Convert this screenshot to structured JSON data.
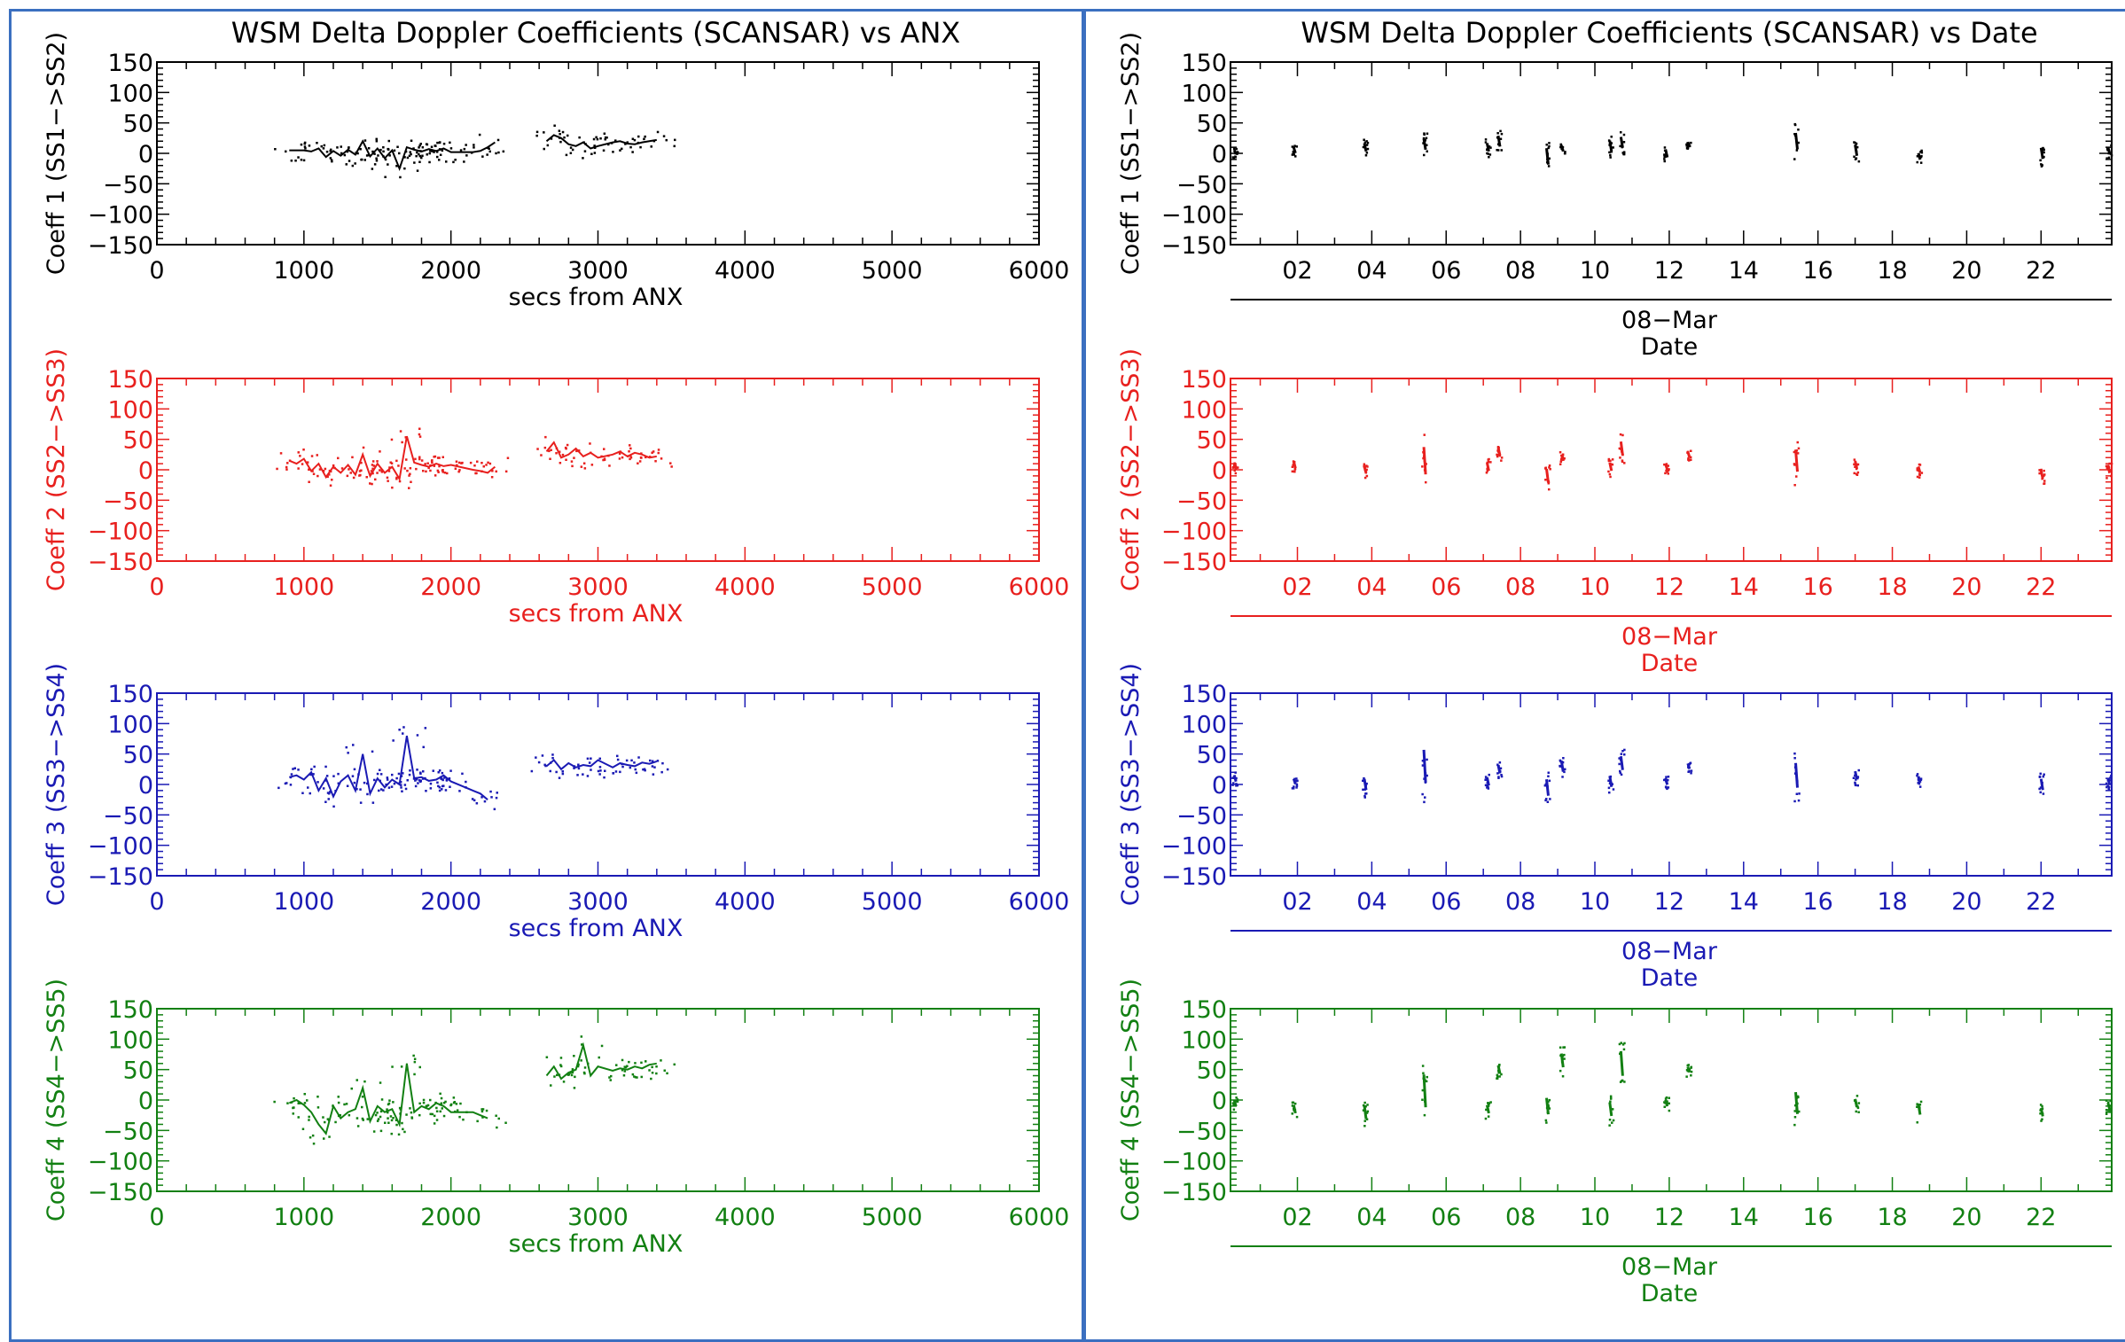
{
  "colors": {
    "black": "#000000",
    "red": "#e8201e",
    "blue": "#1a1ab4",
    "green": "#128012",
    "frame": "#3b6fc0"
  },
  "left": {
    "title": "WSM Delta Doppler Coefficients (SCANSAR) vs ANX",
    "xlabel": "secs from ANX",
    "xticks": [
      "0",
      "1000",
      "2000",
      "3000",
      "4000",
      "5000",
      "6000"
    ],
    "yticks": [
      "150",
      "100",
      "50",
      "0",
      "−50",
      "−100",
      "−150"
    ]
  },
  "right": {
    "title": "WSM Delta Doppler Coefficients (SCANSAR) vs Date",
    "xticks": [
      "02",
      "04",
      "06",
      "08",
      "10",
      "12",
      "14",
      "16",
      "18",
      "20",
      "22"
    ],
    "date_label": "08−Mar",
    "xlabel": "Date",
    "yticks": [
      "150",
      "100",
      "50",
      "0",
      "−50",
      "−100",
      "−150"
    ]
  },
  "chart_data": [
    {
      "type": "scatter",
      "title": "WSM Delta Doppler Coefficients (SCANSAR) vs ANX",
      "xlabel": "secs from ANX",
      "ylabel": "Coeff 1 (SS1−>SS2)",
      "color": "#000000",
      "xlim": [
        0,
        6000
      ],
      "ylim": [
        -150,
        150
      ],
      "series": [
        {
          "x": [
            900,
            1000,
            1050,
            1100,
            1150,
            1200,
            1250,
            1300,
            1350,
            1400,
            1450,
            1500,
            1550,
            1600,
            1650,
            1700,
            1750,
            1800,
            1850,
            1900,
            1950,
            2000,
            2150,
            2200,
            2250,
            2300,
            2650,
            2700,
            2750,
            2800,
            2850,
            2900,
            2950,
            3000,
            3100,
            3150,
            3200,
            3250,
            3300,
            3350,
            3400
          ],
          "y": [
            5,
            5,
            3,
            8,
            -6,
            4,
            -4,
            6,
            -2,
            20,
            -5,
            8,
            -8,
            5,
            -25,
            10,
            6,
            3,
            7,
            4,
            8,
            2,
            2,
            4,
            10,
            18,
            20,
            30,
            25,
            15,
            12,
            18,
            8,
            12,
            18,
            20,
            16,
            15,
            18,
            20,
            22
          ]
        }
      ]
    },
    {
      "type": "scatter",
      "title": "",
      "xlabel": "secs from ANX",
      "ylabel": "Coeff 2 (SS2−>SS3)",
      "color": "#e8201e",
      "xlim": [
        0,
        6000
      ],
      "ylim": [
        -150,
        150
      ],
      "series": [
        {
          "x": [
            900,
            950,
            1000,
            1050,
            1100,
            1150,
            1200,
            1250,
            1300,
            1350,
            1400,
            1450,
            1500,
            1550,
            1600,
            1650,
            1700,
            1750,
            1800,
            1850,
            1900,
            1950,
            2000,
            2150,
            2200,
            2250,
            2300,
            2650,
            2700,
            2750,
            2800,
            2850,
            2900,
            2950,
            3000,
            3100,
            3150,
            3200,
            3250,
            3300,
            3350,
            3400
          ],
          "y": [
            15,
            10,
            18,
            -2,
            10,
            -12,
            5,
            -5,
            8,
            -8,
            25,
            -10,
            10,
            -5,
            5,
            -15,
            55,
            12,
            8,
            5,
            10,
            6,
            8,
            0,
            -2,
            -5,
            5,
            30,
            45,
            20,
            25,
            35,
            22,
            28,
            20,
            25,
            30,
            22,
            28,
            25,
            20,
            22
          ]
        }
      ]
    },
    {
      "type": "scatter",
      "title": "",
      "xlabel": "secs from ANX",
      "ylabel": "Coeff 3 (SS3−>SS4)",
      "color": "#1a1ab4",
      "xlim": [
        0,
        6000
      ],
      "ylim": [
        -150,
        150
      ],
      "series": [
        {
          "x": [
            900,
            950,
            1000,
            1050,
            1100,
            1150,
            1200,
            1250,
            1300,
            1350,
            1400,
            1450,
            1500,
            1550,
            1600,
            1650,
            1700,
            1750,
            1800,
            1850,
            1900,
            1950,
            2000,
            2150,
            2200,
            2250,
            2650,
            2700,
            2750,
            2800,
            2850,
            2900,
            2950,
            3000,
            3100,
            3150,
            3200,
            3250,
            3300,
            3350,
            3400
          ],
          "y": [
            12,
            15,
            8,
            20,
            -10,
            10,
            -20,
            5,
            15,
            -10,
            50,
            -15,
            10,
            -5,
            8,
            0,
            80,
            10,
            12,
            6,
            8,
            15,
            5,
            -10,
            -15,
            -25,
            30,
            40,
            25,
            35,
            28,
            32,
            30,
            40,
            28,
            35,
            32,
            30,
            36,
            34,
            38
          ]
        }
      ]
    },
    {
      "type": "scatter",
      "title": "",
      "xlabel": "secs from ANX",
      "ylabel": "Coeff 4 (SS4−>SS5)",
      "color": "#128012",
      "xlim": [
        0,
        6000
      ],
      "ylim": [
        -150,
        150
      ],
      "series": [
        {
          "x": [
            900,
            950,
            1000,
            1050,
            1100,
            1150,
            1200,
            1250,
            1300,
            1350,
            1400,
            1450,
            1500,
            1550,
            1600,
            1650,
            1700,
            1750,
            1800,
            1850,
            1900,
            1950,
            2000,
            2150,
            2200,
            2250,
            2650,
            2700,
            2750,
            2800,
            2850,
            2900,
            2950,
            3000,
            3100,
            3150,
            3200,
            3250,
            3300,
            3350,
            3400
          ],
          "y": [
            -5,
            0,
            -8,
            -20,
            -40,
            -55,
            -10,
            -30,
            -20,
            -15,
            20,
            -35,
            -10,
            -20,
            -15,
            -40,
            60,
            -20,
            -10,
            -15,
            -5,
            -10,
            -20,
            -20,
            -25,
            -30,
            40,
            55,
            35,
            45,
            50,
            90,
            40,
            55,
            48,
            52,
            50,
            55,
            52,
            58,
            60
          ]
        }
      ]
    },
    {
      "type": "scatter",
      "title": "WSM Delta Doppler Coefficients (SCANSAR) vs Date",
      "xlabel": "Date",
      "ylabel": "Coeff 1 (SS1−>SS2)",
      "color": "#000000",
      "xlim": [
        0.2,
        23.9
      ],
      "ylim": [
        -150,
        150
      ],
      "series": [
        {
          "x": [
            0.3,
            1.9,
            3.8,
            5.4,
            7.1,
            7.4,
            8.7,
            9.1,
            10.4,
            10.7,
            11.9,
            12.5,
            15.4,
            17.0,
            18.7,
            22.0,
            23.8
          ],
          "y": [
            2,
            5,
            10,
            15,
            10,
            20,
            -5,
            8,
            12,
            18,
            0,
            15,
            20,
            5,
            -5,
            0,
            5
          ],
          "spread": [
            8,
            10,
            15,
            20,
            15,
            20,
            30,
            10,
            20,
            20,
            15,
            8,
            30,
            20,
            12,
            20,
            12
          ]
        }
      ]
    },
    {
      "type": "scatter",
      "title": "",
      "xlabel": "Date",
      "ylabel": "Coeff 2 (SS2−>SS3)",
      "color": "#e8201e",
      "xlim": [
        0.2,
        23.9
      ],
      "ylim": [
        -150,
        150
      ],
      "series": [
        {
          "x": [
            0.3,
            1.9,
            3.8,
            5.4,
            7.1,
            7.4,
            8.7,
            9.1,
            10.4,
            10.7,
            11.9,
            12.5,
            15.4,
            17.0,
            18.7,
            22.0,
            23.8
          ],
          "y": [
            5,
            8,
            0,
            15,
            5,
            30,
            -10,
            20,
            5,
            35,
            5,
            25,
            15,
            8,
            0,
            -8,
            0
          ],
          "spread": [
            10,
            12,
            12,
            50,
            15,
            15,
            25,
            12,
            15,
            25,
            10,
            10,
            40,
            15,
            12,
            15,
            12
          ]
        }
      ]
    },
    {
      "type": "scatter",
      "title": "",
      "xlabel": "Date",
      "ylabel": "Coeff 3 (SS3−>SS4)",
      "color": "#1a1ab4",
      "xlim": [
        0.2,
        23.9
      ],
      "ylim": [
        -150,
        150
      ],
      "series": [
        {
          "x": [
            0.3,
            1.9,
            3.8,
            5.4,
            7.1,
            7.4,
            8.7,
            9.1,
            10.4,
            10.7,
            11.9,
            12.5,
            15.4,
            17.0,
            18.7,
            22.0,
            23.8
          ],
          "y": [
            10,
            5,
            0,
            30,
            5,
            25,
            -5,
            30,
            5,
            35,
            5,
            30,
            15,
            15,
            8,
            0,
            5
          ],
          "spread": [
            12,
            10,
            20,
            60,
            15,
            15,
            30,
            20,
            20,
            25,
            12,
            10,
            45,
            15,
            12,
            20,
            12
          ]
        }
      ]
    },
    {
      "type": "scatter",
      "title": "",
      "xlabel": "Date",
      "ylabel": "Coeff 4 (SS4−>SS5)",
      "color": "#128012",
      "xlim": [
        0.2,
        23.9
      ],
      "ylim": [
        -150,
        150
      ],
      "series": [
        {
          "x": [
            0.3,
            1.9,
            3.8,
            5.4,
            7.1,
            7.4,
            8.7,
            9.1,
            10.4,
            10.7,
            11.9,
            12.5,
            15.4,
            17.0,
            18.7,
            22.0,
            23.8
          ],
          "y": [
            -5,
            -15,
            -20,
            15,
            -15,
            50,
            -10,
            65,
            -15,
            60,
            -5,
            50,
            -5,
            -5,
            -15,
            -20,
            -10
          ],
          "spread": [
            12,
            15,
            25,
            60,
            15,
            15,
            30,
            25,
            25,
            45,
            12,
            10,
            40,
            15,
            20,
            15,
            12
          ]
        }
      ]
    }
  ]
}
